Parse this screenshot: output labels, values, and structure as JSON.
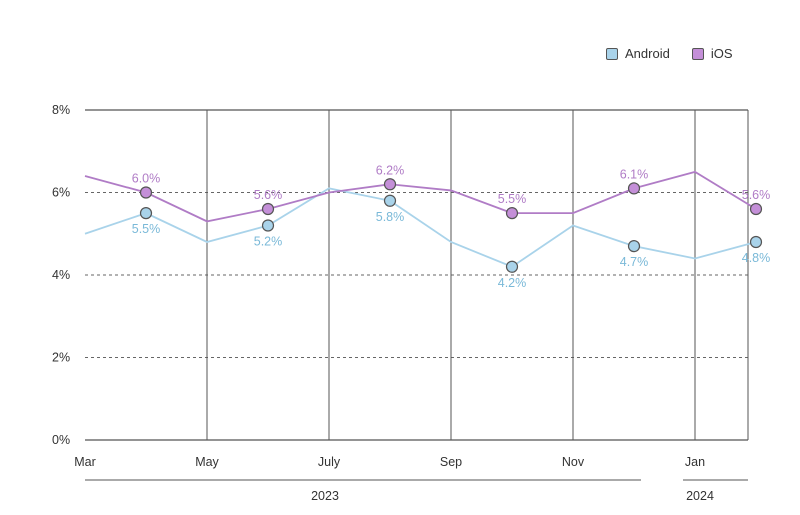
{
  "chart_data": {
    "type": "line",
    "title": "",
    "xlabel": "",
    "ylabel": "",
    "ylim": [
      0,
      8
    ],
    "y_ticks": [
      "0%",
      "2%",
      "4%",
      "6%",
      "8%"
    ],
    "x_tick_labels": [
      "Mar",
      "May",
      "July",
      "Sep",
      "Nov",
      "Jan"
    ],
    "year_labels": [
      "2023",
      "2024"
    ],
    "x": [
      "Mar",
      "Apr",
      "May",
      "Jun",
      "Jul",
      "Aug",
      "Sep",
      "Oct",
      "Nov",
      "Dec",
      "Jan",
      "Feb"
    ],
    "series": [
      {
        "name": "Android",
        "color": "#a9d3ea",
        "marker_fill": "#a9d3ea",
        "marker_stroke": "#555555",
        "label_color": "#7ab9d8",
        "values": [
          5.0,
          5.5,
          4.8,
          5.2,
          6.1,
          5.8,
          4.8,
          4.2,
          5.2,
          4.7,
          4.4,
          4.8
        ],
        "labels": [
          null,
          "5.5%",
          null,
          "5.2%",
          null,
          "5.8%",
          null,
          "4.2%",
          null,
          "4.7%",
          null,
          "4.8%"
        ],
        "label_pos": [
          null,
          "below",
          null,
          "below",
          null,
          "below",
          null,
          "below",
          null,
          "below",
          null,
          "below"
        ]
      },
      {
        "name": "iOS",
        "color": "#b07cc6",
        "marker_fill": "#c48fd8",
        "marker_stroke": "#555555",
        "label_color": "#b07cc6",
        "values": [
          6.4,
          6.0,
          5.3,
          5.6,
          6.0,
          6.2,
          6.05,
          5.5,
          5.5,
          6.1,
          6.5,
          5.6
        ],
        "labels": [
          null,
          "6.0%",
          null,
          "5.6%",
          null,
          "6.2%",
          null,
          "5.5%",
          null,
          "6.1%",
          null,
          "5.6%"
        ],
        "label_pos": [
          null,
          "above",
          null,
          "above",
          null,
          "above",
          null,
          "above",
          null,
          "above",
          null,
          "above"
        ]
      }
    ],
    "legend_position": "top-right",
    "grid": "dashed horizontal at 2%, 4%, 6%; solid at 0% and 8%",
    "vertical_separators": [
      "May",
      "July",
      "Sep",
      "Nov",
      "Jan",
      "end"
    ]
  },
  "legend": {
    "items": [
      {
        "name": "Android",
        "color": "#a9d3ea"
      },
      {
        "name": "iOS",
        "color": "#c48fd8"
      }
    ]
  }
}
